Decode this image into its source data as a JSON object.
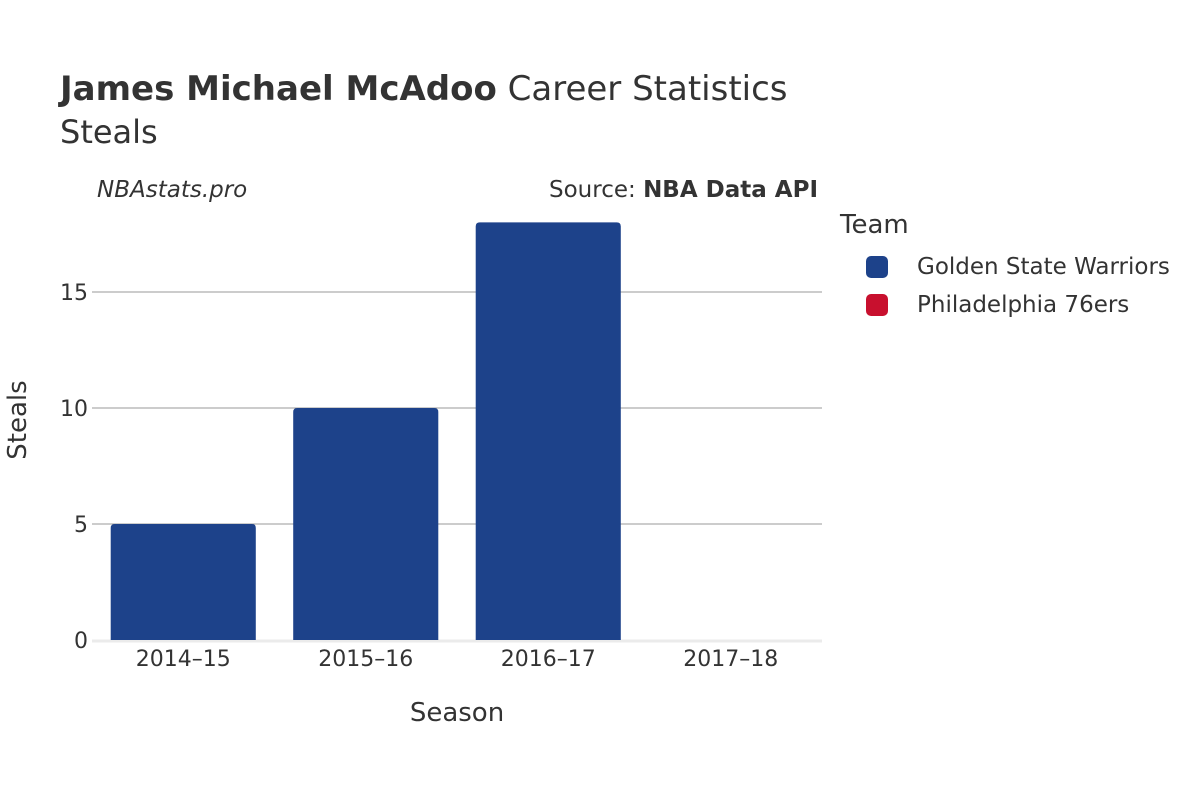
{
  "header": {
    "title_bold": "James Michael McAdoo",
    "title_rest": " Career Statistics",
    "subtitle": "Steals",
    "brand": "NBAstats.pro",
    "source_prefix": "Source: ",
    "source_name": "NBA Data API"
  },
  "legend": {
    "title": "Team",
    "items": [
      {
        "label": "Golden State Warriors",
        "color": "#1d428a"
      },
      {
        "label": "Philadelphia 76ers",
        "color": "#c8102e"
      }
    ]
  },
  "chart_data": {
    "type": "bar",
    "title": "James Michael McAdoo Career Statistics",
    "subtitle": "Steals",
    "xlabel": "Season",
    "ylabel": "Steals",
    "categories": [
      "2014–15",
      "2015–16",
      "2016–17",
      "2017–18"
    ],
    "series": [
      {
        "name": "Golden State Warriors",
        "color": "#1d428a",
        "values": [
          5,
          10,
          18,
          0
        ]
      },
      {
        "name": "Philadelphia 76ers",
        "color": "#c8102e",
        "values": [
          0,
          0,
          0,
          0
        ]
      }
    ],
    "yticks": [
      0,
      5,
      10,
      15
    ],
    "ylim": [
      0,
      18
    ],
    "grid": true,
    "legend_position": "right"
  }
}
